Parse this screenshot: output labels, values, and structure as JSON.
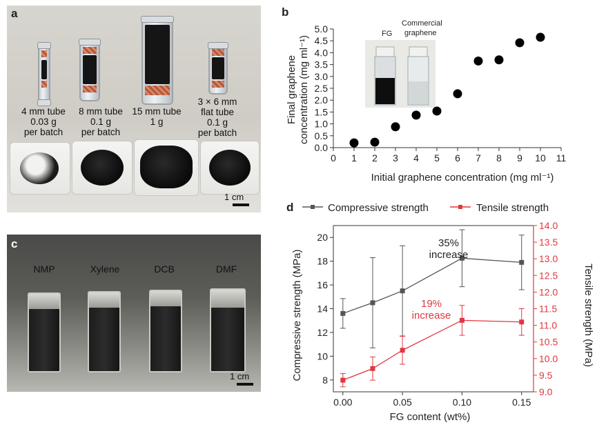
{
  "panel_a": {
    "label": "a",
    "tubes": [
      {
        "size": "4 mm tube",
        "mass": "0.03 g",
        "note": "per batch"
      },
      {
        "size": "8 mm tube",
        "mass": "0.1 g",
        "note": "per batch"
      },
      {
        "size": "15 mm tube",
        "mass": "1 g",
        "note": ""
      },
      {
        "size": "3 × 6 mm",
        "mass": "flat tube",
        "note": "0.1 g",
        "note2": "per batch"
      }
    ],
    "scale_bar": "1 cm"
  },
  "panel_c": {
    "label": "c",
    "solvents": [
      "NMP",
      "Xylene",
      "DCB",
      "DMF"
    ],
    "scale_bar": "1 cm"
  },
  "chart_data": [
    {
      "panel": "b",
      "type": "scatter",
      "xlabel": "Initial graphene concentration (mg ml⁻¹)",
      "ylabel": "Final graphene concentration (mg ml⁻¹)",
      "ylabel_lines": [
        "Final graphene",
        "concentration (mg ml⁻¹)"
      ],
      "xlim": [
        0,
        11
      ],
      "ylim": [
        0,
        5.0
      ],
      "xticks": [
        "0",
        "1",
        "2",
        "3",
        "4",
        "5",
        "6",
        "7",
        "8",
        "9",
        "10",
        "11"
      ],
      "yticks": [
        "0.0",
        "0.5",
        "1.0",
        "1.5",
        "2.0",
        "2.5",
        "3.0",
        "3.5",
        "4.0",
        "4.5",
        "5.0"
      ],
      "x": [
        1,
        2,
        3,
        4,
        5,
        6,
        7,
        8,
        9,
        10
      ],
      "y": [
        0.2,
        0.23,
        0.88,
        1.37,
        1.54,
        2.27,
        3.65,
        3.7,
        4.42,
        4.65
      ],
      "inset": {
        "label_fg": "FG",
        "label_commercial": [
          "Commercial",
          "graphene"
        ]
      },
      "marker_color": "#000000"
    },
    {
      "panel": "d",
      "type": "line",
      "xlabel": "FG content (wt%)",
      "ylabel_left": "Compressive strength (MPa)",
      "ylabel_right": "Tensile strength (MPa)",
      "x": [
        0.0,
        0.025,
        0.05,
        0.1,
        0.15
      ],
      "xticks": [
        "0.00",
        "0.05",
        "0.10",
        "0.15"
      ],
      "xtick_values": [
        0.0,
        0.05,
        0.1,
        0.15
      ],
      "xlim": [
        -0.008,
        0.16
      ],
      "ylim_left": [
        7,
        21
      ],
      "yticks_left": [
        "8",
        "10",
        "12",
        "14",
        "16",
        "18",
        "20"
      ],
      "ylim_right": [
        9.0,
        14.0
      ],
      "yticks_right": [
        "9.0",
        "9.5",
        "10.0",
        "10.5",
        "11.0",
        "11.5",
        "12.0",
        "12.5",
        "13.0",
        "13.5",
        "14.0"
      ],
      "series": [
        {
          "name": "Compressive strength",
          "axis": "left",
          "color": "#555555",
          "values": [
            13.6,
            14.5,
            15.5,
            18.25,
            17.9
          ],
          "err": [
            1.25,
            3.8,
            3.8,
            2.4,
            2.3
          ]
        },
        {
          "name": "Tensile strength",
          "axis": "right",
          "color": "#e0373f",
          "values": [
            9.35,
            9.7,
            10.25,
            11.15,
            11.1
          ],
          "err": [
            0.2,
            0.35,
            0.42,
            0.45,
            0.4
          ]
        }
      ],
      "annotations": [
        {
          "text": [
            "35%",
            "increase"
          ],
          "color": "#222222"
        },
        {
          "text": [
            "19%",
            "increase"
          ],
          "color": "#e0373f"
        }
      ]
    }
  ]
}
